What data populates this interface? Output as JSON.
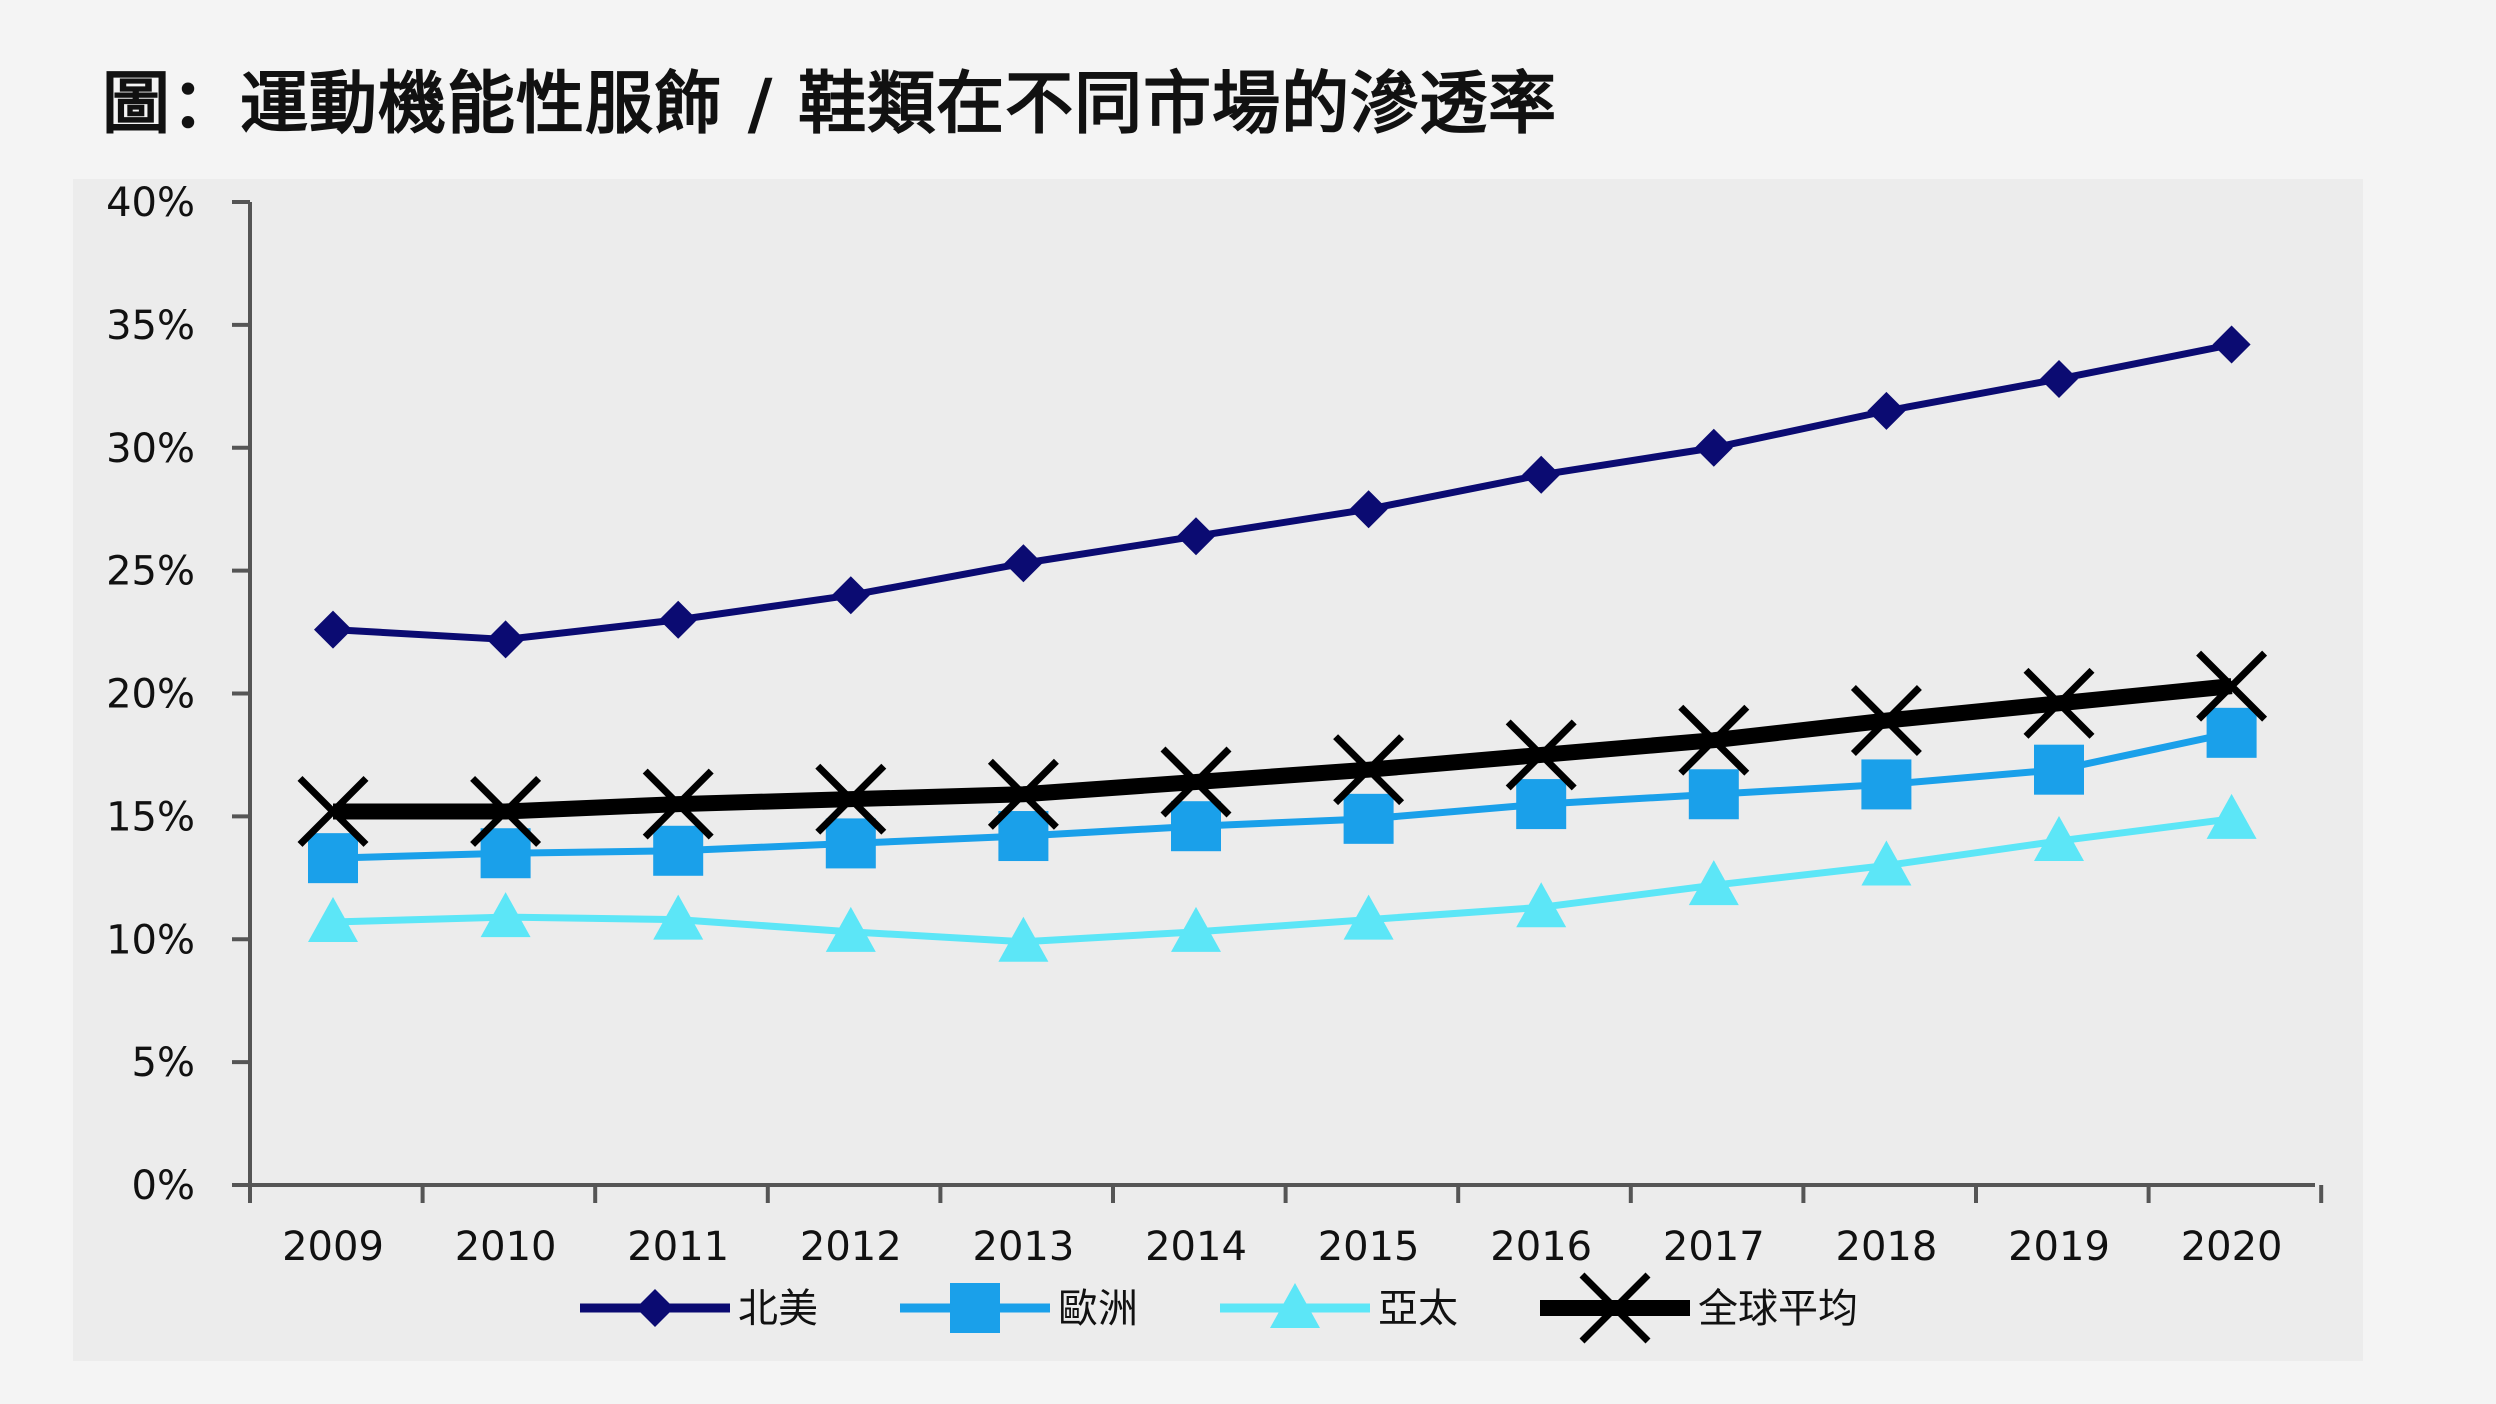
{
  "title": "圖：運動機能性服飾 / 鞋類在不同市場的滲透率",
  "chart_data": {
    "type": "line",
    "x": [
      "2009",
      "2010",
      "2011",
      "2012",
      "2013",
      "2014",
      "2015",
      "2016",
      "2017",
      "2018",
      "2019",
      "2020"
    ],
    "ylim": [
      0,
      40
    ],
    "y_ticks": [
      "0%",
      "5%",
      "10%",
      "15%",
      "20%",
      "25%",
      "30%",
      "35%",
      "40%"
    ],
    "y_tick_values": [
      0,
      5,
      10,
      15,
      20,
      25,
      30,
      35,
      40
    ],
    "grid": false,
    "legend_position": "bottom",
    "series": [
      {
        "name": "北美",
        "color": "#0b0b72",
        "marker": "diamond",
        "values": [
          22.6,
          22.2,
          23.0,
          24.0,
          25.3,
          26.4,
          27.5,
          28.9,
          30.0,
          31.5,
          32.8,
          34.2
        ]
      },
      {
        "name": "歐洲",
        "color": "#1aa0ea",
        "marker": "square",
        "values": [
          13.3,
          13.5,
          13.6,
          13.9,
          14.2,
          14.6,
          14.9,
          15.5,
          15.9,
          16.3,
          16.9,
          18.4
        ]
      },
      {
        "name": "亞太",
        "color": "#5ce6f7",
        "marker": "triangle",
        "values": [
          10.7,
          10.9,
          10.8,
          10.3,
          9.9,
          10.3,
          10.8,
          11.3,
          12.2,
          13.0,
          14.0,
          14.9
        ]
      },
      {
        "name": "全球平均",
        "color": "#000000",
        "marker": "x",
        "values": [
          15.2,
          15.2,
          15.5,
          15.7,
          15.9,
          16.4,
          16.9,
          17.5,
          18.1,
          18.9,
          19.6,
          20.3
        ]
      }
    ]
  }
}
